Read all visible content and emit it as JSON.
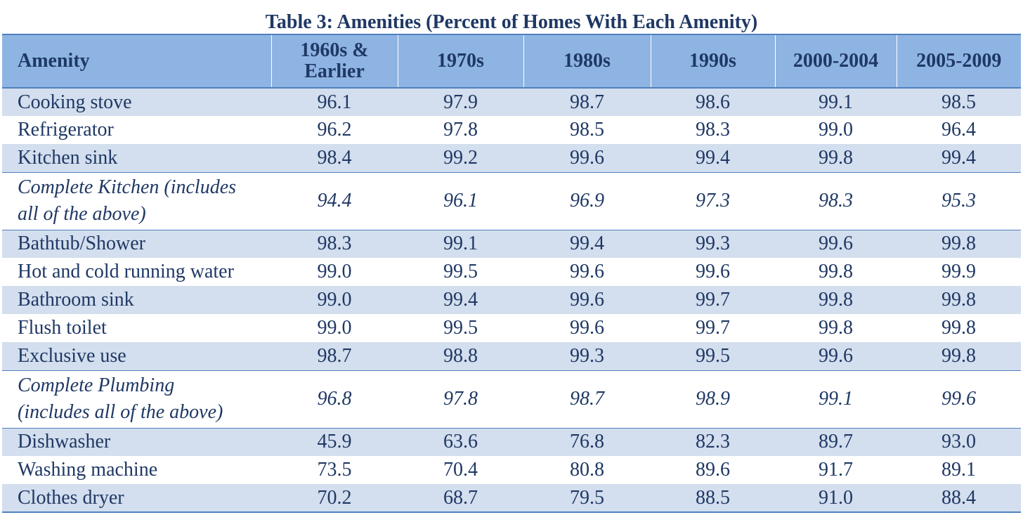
{
  "table": {
    "title": "Table 3: Amenities (Percent of Homes With Each Amenity)",
    "headers": [
      "Amenity",
      "1960s & Earlier",
      "1970s",
      "1980s",
      "1990s",
      "2000-2004",
      "2005-2009"
    ],
    "rows": [
      {
        "label": "Cooking stove",
        "values": [
          "96.1",
          "97.9",
          "98.7",
          "98.6",
          "99.1",
          "98.5"
        ]
      },
      {
        "label": "Refrigerator",
        "values": [
          "96.2",
          "97.8",
          "98.5",
          "98.3",
          "99.0",
          "96.4"
        ]
      },
      {
        "label": "Kitchen sink",
        "values": [
          "98.4",
          "99.2",
          "99.6",
          "99.4",
          "99.8",
          "99.4"
        ]
      },
      {
        "label": "Complete Kitchen (includes all of the above)",
        "values": [
          "94.4",
          "96.1",
          "96.9",
          "97.3",
          "98.3",
          "95.3"
        ]
      },
      {
        "label": "Bathtub/Shower",
        "values": [
          "98.3",
          "99.1",
          "99.4",
          "99.3",
          "99.6",
          "99.8"
        ]
      },
      {
        "label": "Hot and cold running water",
        "values": [
          "99.0",
          "99.5",
          "99.6",
          "99.6",
          "99.8",
          "99.9"
        ]
      },
      {
        "label": "Bathroom sink",
        "values": [
          "99.0",
          "99.4",
          "99.6",
          "99.7",
          "99.8",
          "99.8"
        ]
      },
      {
        "label": "Flush toilet",
        "values": [
          "99.0",
          "99.5",
          "99.6",
          "99.7",
          "99.8",
          "99.8"
        ]
      },
      {
        "label": "Exclusive use",
        "values": [
          "98.7",
          "98.8",
          "99.3",
          "99.5",
          "99.6",
          "99.8"
        ]
      },
      {
        "label": "Complete Plumbing (includes all of the above)",
        "values": [
          "96.8",
          "97.8",
          "98.7",
          "98.9",
          "99.1",
          "99.6"
        ]
      },
      {
        "label": "Dishwasher",
        "values": [
          "45.9",
          "63.6",
          "76.8",
          "82.3",
          "89.7",
          "93.0"
        ]
      },
      {
        "label": "Washing machine",
        "values": [
          "73.5",
          "70.4",
          "80.8",
          "89.6",
          "91.7",
          "89.1"
        ]
      },
      {
        "label": "Clothes dryer",
        "values": [
          "70.2",
          "68.7",
          "79.5",
          "88.5",
          "91.0",
          "88.4"
        ]
      }
    ]
  },
  "colors": {
    "text": "#1f3864",
    "header_fill": "#8eb4e3",
    "band_fill": "#d3deee",
    "rule": "#4f81bd"
  }
}
